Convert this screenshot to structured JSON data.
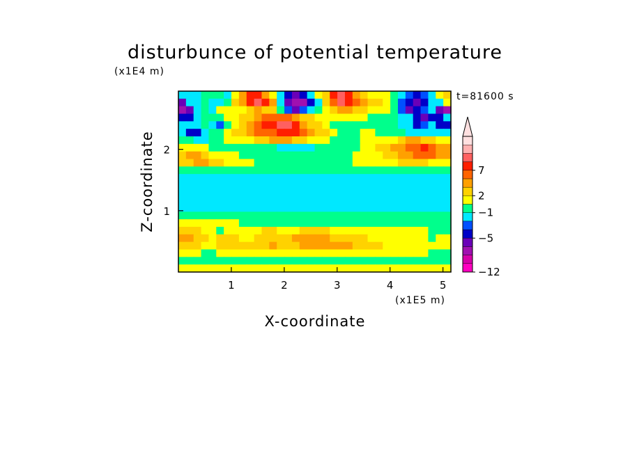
{
  "chart_data": {
    "type": "heatmap",
    "title": "disturbunce of potential temperature",
    "time_label": "t=81600 s",
    "xlabel": "X-coordinate",
    "ylabel": "Z-coordinate",
    "x_unit": "(x1E5 m)",
    "y_unit": "(x1E4 m)",
    "x_ticks": [
      "1",
      "2",
      "3",
      "4",
      "5"
    ],
    "y_ticks": [
      "1",
      "2"
    ],
    "xlim": [
      0,
      5.15
    ],
    "ylim": [
      0,
      2.95
    ],
    "colorbar": {
      "colors": [
        "#ff00c0",
        "#d600a8",
        "#a010b0",
        "#6a00b8",
        "#0000c8",
        "#0050ff",
        "#00e8ff",
        "#00ff8c",
        "#ffff00",
        "#ffd200",
        "#ffa000",
        "#ff6400",
        "#ff1e00",
        "#ff6060",
        "#ffb0b0",
        "#ffe0e0"
      ],
      "extend_color": "#ffe0e0",
      "labels": [
        "-12",
        "-5",
        "-1",
        "2",
        "7"
      ],
      "label_boundaries": [
        0,
        4,
        7,
        9,
        12
      ]
    },
    "rows": [
      [
        6,
        6,
        6,
        7,
        7,
        7,
        6,
        8,
        10,
        12,
        12,
        10,
        8,
        6,
        4,
        3,
        4,
        6,
        8,
        9,
        12,
        13,
        12,
        10,
        9,
        8,
        8,
        8,
        7,
        6,
        5,
        4,
        5,
        6,
        8,
        9
      ],
      [
        3,
        6,
        6,
        7,
        6,
        6,
        7,
        9,
        10,
        12,
        13,
        12,
        10,
        6,
        3,
        2,
        2,
        4,
        6,
        9,
        11,
        13,
        12,
        11,
        10,
        9,
        9,
        8,
        7,
        5,
        4,
        3,
        4,
        6,
        6,
        8
      ],
      [
        2,
        3,
        6,
        7,
        6,
        8,
        8,
        8,
        8,
        9,
        10,
        9,
        9,
        7,
        5,
        3,
        5,
        6,
        7,
        8,
        9,
        10,
        10,
        9,
        9,
        8,
        8,
        8,
        7,
        5,
        3,
        4,
        5,
        6,
        3,
        2
      ],
      [
        4,
        4,
        6,
        7,
        7,
        7,
        8,
        8,
        9,
        9,
        10,
        11,
        11,
        11,
        11,
        10,
        9,
        9,
        8,
        8,
        8,
        8,
        8,
        8,
        8,
        7,
        7,
        7,
        7,
        6,
        6,
        4,
        3,
        4,
        4,
        6
      ],
      [
        6,
        6,
        6,
        7,
        6,
        5,
        7,
        8,
        9,
        10,
        11,
        12,
        12,
        13,
        13,
        12,
        10,
        9,
        9,
        8,
        7,
        7,
        7,
        7,
        7,
        7,
        7,
        7,
        7,
        6,
        6,
        4,
        5,
        6,
        4,
        4
      ],
      [
        6,
        4,
        4,
        6,
        7,
        7,
        8,
        9,
        9,
        10,
        11,
        11,
        11,
        12,
        12,
        12,
        11,
        10,
        9,
        9,
        8,
        7,
        7,
        7,
        8,
        8,
        7,
        7,
        7,
        7,
        6,
        6,
        6,
        6,
        6,
        6
      ],
      [
        7,
        7,
        6,
        6,
        7,
        7,
        8,
        8,
        8,
        8,
        9,
        9,
        10,
        10,
        10,
        9,
        9,
        8,
        8,
        8,
        7,
        7,
        7,
        7,
        8,
        8,
        8,
        8,
        8,
        9,
        10,
        10,
        9,
        9,
        8,
        8
      ],
      [
        8,
        8,
        8,
        8,
        7,
        7,
        7,
        7,
        7,
        7,
        7,
        7,
        7,
        6,
        6,
        6,
        6,
        6,
        7,
        7,
        7,
        7,
        7,
        7,
        8,
        8,
        9,
        9,
        10,
        10,
        11,
        11,
        12,
        11,
        10,
        10
      ],
      [
        9,
        10,
        10,
        9,
        8,
        8,
        8,
        8,
        7,
        7,
        7,
        7,
        7,
        7,
        7,
        7,
        7,
        7,
        7,
        7,
        7,
        7,
        7,
        8,
        8,
        8,
        8,
        9,
        9,
        10,
        10,
        11,
        11,
        11,
        10,
        10
      ],
      [
        9,
        9,
        10,
        10,
        9,
        9,
        8,
        8,
        8,
        8,
        7,
        7,
        7,
        7,
        7,
        7,
        7,
        7,
        7,
        7,
        7,
        7,
        7,
        8,
        8,
        8,
        8,
        8,
        8,
        9,
        9,
        9,
        9,
        8,
        8,
        8
      ],
      [
        7,
        7,
        7,
        7,
        7,
        7,
        7,
        7,
        7,
        7,
        7,
        7,
        7,
        7,
        7,
        7,
        7,
        7,
        7,
        7,
        7,
        7,
        7,
        7,
        7,
        7,
        7,
        7,
        7,
        7,
        7,
        7,
        7,
        7,
        7,
        7
      ],
      [
        6,
        6,
        6,
        6,
        6,
        6,
        6,
        6,
        6,
        6,
        6,
        6,
        6,
        6,
        6,
        6,
        6,
        6,
        6,
        6,
        6,
        6,
        6,
        6,
        6,
        6,
        6,
        6,
        6,
        6,
        6,
        6,
        6,
        6,
        6,
        6
      ],
      [
        6,
        6,
        6,
        6,
        6,
        6,
        6,
        6,
        6,
        6,
        6,
        6,
        6,
        6,
        6,
        6,
        6,
        6,
        6,
        6,
        6,
        6,
        6,
        6,
        6,
        6,
        6,
        6,
        6,
        6,
        6,
        6,
        6,
        6,
        6,
        6
      ],
      [
        6,
        6,
        6,
        6,
        6,
        6,
        6,
        6,
        6,
        6,
        6,
        6,
        6,
        6,
        6,
        6,
        6,
        6,
        6,
        6,
        6,
        6,
        6,
        6,
        6,
        6,
        6,
        6,
        6,
        6,
        6,
        6,
        6,
        6,
        6,
        6
      ],
      [
        6,
        6,
        6,
        6,
        6,
        6,
        6,
        6,
        6,
        6,
        6,
        6,
        6,
        6,
        6,
        6,
        6,
        6,
        6,
        6,
        6,
        6,
        6,
        6,
        6,
        6,
        6,
        6,
        6,
        6,
        6,
        6,
        6,
        6,
        6,
        6
      ],
      [
        6,
        6,
        6,
        6,
        6,
        6,
        6,
        6,
        6,
        6,
        6,
        6,
        6,
        6,
        6,
        6,
        6,
        6,
        6,
        6,
        6,
        6,
        6,
        6,
        6,
        6,
        6,
        6,
        6,
        6,
        6,
        6,
        6,
        6,
        6,
        6
      ],
      [
        7,
        7,
        7,
        7,
        7,
        7,
        7,
        7,
        7,
        7,
        7,
        7,
        7,
        7,
        7,
        7,
        7,
        7,
        7,
        7,
        7,
        7,
        7,
        7,
        7,
        7,
        7,
        7,
        7,
        7,
        7,
        7,
        7,
        7,
        7,
        7
      ],
      [
        8,
        8,
        8,
        8,
        8,
        8,
        8,
        8,
        7,
        7,
        7,
        7,
        7,
        7,
        7,
        7,
        7,
        7,
        7,
        7,
        7,
        7,
        7,
        7,
        7,
        7,
        7,
        7,
        7,
        7,
        7,
        7,
        7,
        7,
        7,
        7
      ],
      [
        9,
        9,
        9,
        8,
        8,
        7,
        8,
        8,
        8,
        8,
        8,
        9,
        9,
        8,
        8,
        8,
        9,
        9,
        9,
        9,
        8,
        8,
        8,
        8,
        8,
        8,
        8,
        8,
        8,
        8,
        8,
        8,
        8,
        7,
        7,
        7
      ],
      [
        10,
        10,
        9,
        9,
        8,
        9,
        9,
        9,
        8,
        8,
        9,
        9,
        9,
        9,
        9,
        10,
        10,
        10,
        10,
        10,
        9,
        9,
        9,
        9,
        9,
        8,
        8,
        8,
        8,
        8,
        8,
        8,
        8,
        7,
        8,
        8
      ],
      [
        9,
        9,
        9,
        8,
        8,
        9,
        9,
        9,
        9,
        9,
        9,
        9,
        10,
        9,
        9,
        9,
        10,
        10,
        10,
        10,
        10,
        10,
        10,
        9,
        9,
        9,
        9,
        8,
        8,
        8,
        8,
        8,
        8,
        8,
        8,
        8
      ],
      [
        8,
        8,
        8,
        7,
        7,
        8,
        8,
        8,
        8,
        8,
        8,
        8,
        8,
        8,
        8,
        8,
        8,
        8,
        8,
        8,
        8,
        8,
        8,
        8,
        8,
        8,
        8,
        8,
        8,
        8,
        8,
        8,
        8,
        7,
        7,
        7
      ],
      [
        7,
        7,
        7,
        7,
        7,
        7,
        7,
        7,
        7,
        7,
        7,
        7,
        7,
        7,
        7,
        7,
        7,
        7,
        7,
        7,
        7,
        7,
        7,
        7,
        7,
        7,
        7,
        7,
        7,
        7,
        7,
        7,
        7,
        7,
        7,
        7
      ],
      [
        8,
        8,
        8,
        8,
        8,
        8,
        8,
        8,
        8,
        8,
        8,
        8,
        8,
        8,
        8,
        8,
        8,
        8,
        8,
        8,
        8,
        8,
        8,
        8,
        8,
        8,
        8,
        8,
        8,
        8,
        8,
        8,
        8,
        8,
        8,
        8
      ]
    ]
  }
}
